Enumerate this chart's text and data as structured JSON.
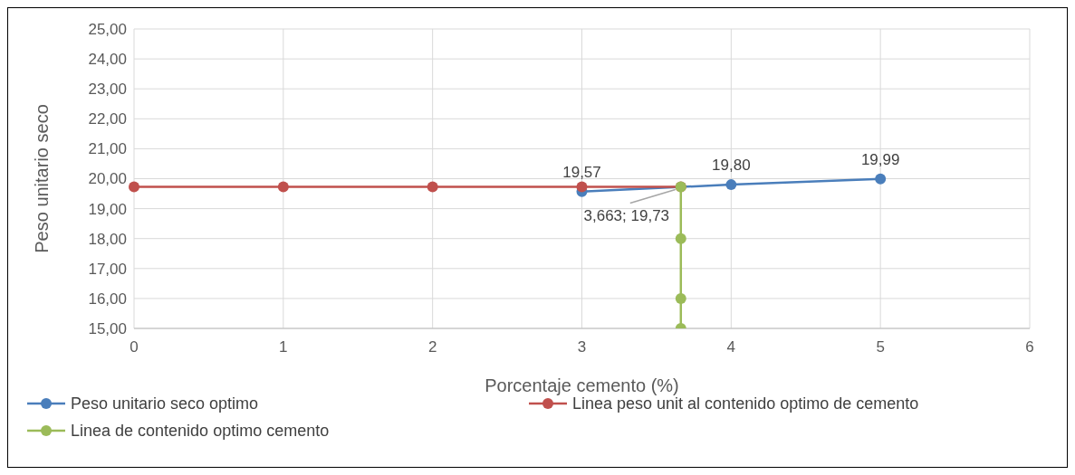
{
  "chart_data": {
    "type": "line",
    "xlabel": "Porcentaje cemento (%)",
    "ylabel": "Peso unitario seco",
    "series": [
      {
        "name": "Peso unitario seco optimo",
        "color": "#4a7ebb",
        "x": [
          3,
          4,
          5
        ],
        "values": [
          19.57,
          19.8,
          19.99
        ],
        "value_labels": [
          "19,57",
          "19,80",
          "19,99"
        ]
      },
      {
        "name": "Linea peso unit al contenido optimo de cemento",
        "color": "#c0504d",
        "x": [
          0,
          1,
          2,
          3,
          3.663
        ],
        "values": [
          19.73,
          19.73,
          19.73,
          19.73,
          19.73
        ]
      },
      {
        "name": "Linea de contenido optimo cemento",
        "color": "#9bbb59",
        "x": [
          3.663,
          3.663,
          3.663,
          3.663
        ],
        "values": [
          19.73,
          18,
          16,
          15
        ]
      }
    ],
    "annotations": [
      {
        "text": "3,663; 19,73",
        "x": 3.663,
        "y": 19.73
      }
    ],
    "xlim": [
      0,
      6
    ],
    "xticks": [
      0,
      1,
      2,
      3,
      4,
      5,
      6
    ],
    "ylim": [
      15,
      25
    ],
    "yticks": [
      {
        "value": 15,
        "label": "15,00"
      },
      {
        "value": 16,
        "label": "16,00"
      },
      {
        "value": 17,
        "label": "17,00"
      },
      {
        "value": 18,
        "label": "18,00"
      },
      {
        "value": 19,
        "label": "19,00"
      },
      {
        "value": 20,
        "label": "20,00"
      },
      {
        "value": 21,
        "label": "21,00"
      },
      {
        "value": 22,
        "label": "22,00"
      },
      {
        "value": 23,
        "label": "23,00"
      },
      {
        "value": 24,
        "label": "24,00"
      },
      {
        "value": 25,
        "label": "25,00"
      }
    ],
    "grid": true,
    "legend": "bottom",
    "marker": "circle",
    "line_style": "solid"
  }
}
